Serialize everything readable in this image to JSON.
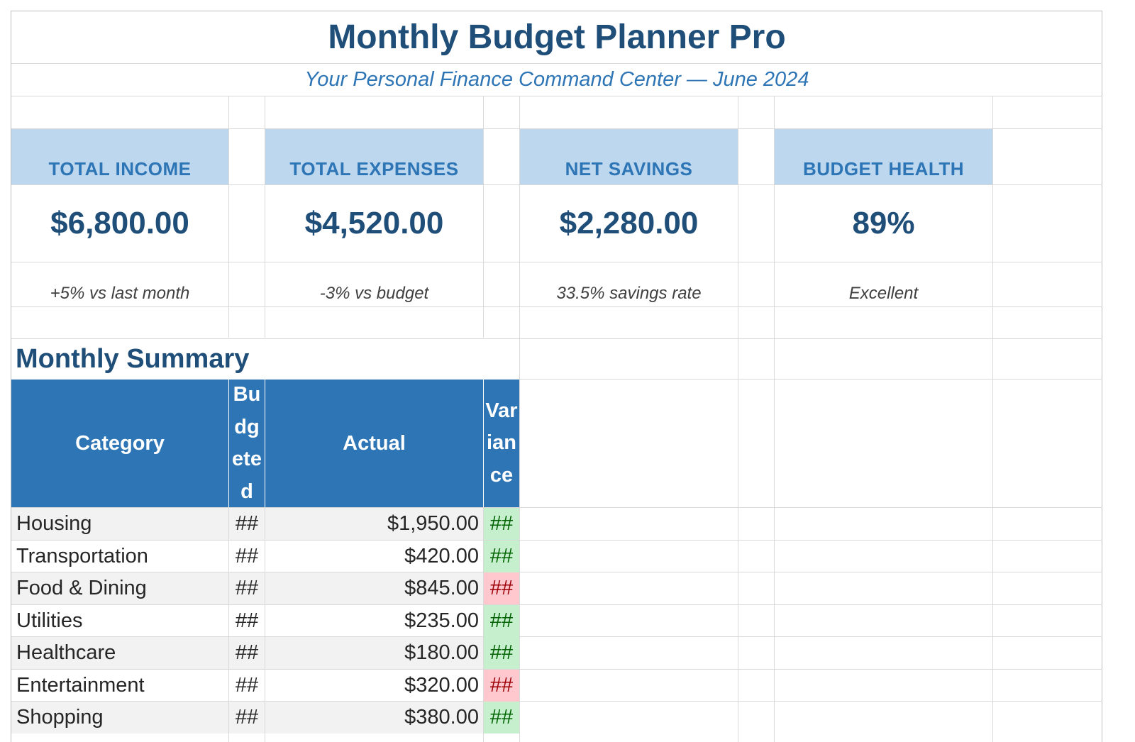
{
  "title": "Monthly Budget Planner Pro",
  "subtitle": "Your Personal Finance Command Center — June 2024",
  "kpis": [
    {
      "label": "TOTAL INCOME",
      "value": "$6,800.00",
      "note": "+5% vs last month"
    },
    {
      "label": "TOTAL EXPENSES",
      "value": "$4,520.00",
      "note": "-3% vs budget"
    },
    {
      "label": "NET SAVINGS",
      "value": "$2,280.00",
      "note": "33.5% savings rate"
    },
    {
      "label": "BUDGET HEALTH",
      "value": "89%",
      "note": "Excellent"
    }
  ],
  "summary": {
    "heading": "Monthly Summary",
    "columns": [
      "Category",
      "Budgeted",
      "Actual",
      "Variance"
    ],
    "rows": [
      {
        "category": "Housing",
        "budgeted": "##",
        "actual": "$1,950.00",
        "variance": "##",
        "status": "under"
      },
      {
        "category": "Transportation",
        "budgeted": "##",
        "actual": "$420.00",
        "variance": "##",
        "status": "under"
      },
      {
        "category": "Food & Dining",
        "budgeted": "##",
        "actual": "$845.00",
        "variance": "##",
        "status": "over"
      },
      {
        "category": "Utilities",
        "budgeted": "##",
        "actual": "$235.00",
        "variance": "##",
        "status": "under"
      },
      {
        "category": "Healthcare",
        "budgeted": "##",
        "actual": "$180.00",
        "variance": "##",
        "status": "under"
      },
      {
        "category": "Entertainment",
        "budgeted": "##",
        "actual": "$320.00",
        "variance": "##",
        "status": "over"
      },
      {
        "category": "Shopping",
        "budgeted": "##",
        "actual": "$380.00",
        "variance": "##",
        "status": "under"
      }
    ]
  },
  "colors": {
    "title": "#1f4e79",
    "accent": "#2e75b6",
    "kpi_header_bg": "#bdd7ee",
    "positive_bg": "#c6efce",
    "positive_text": "#006100",
    "negative_bg": "#ffc7ce",
    "negative_text": "#9c0006"
  }
}
